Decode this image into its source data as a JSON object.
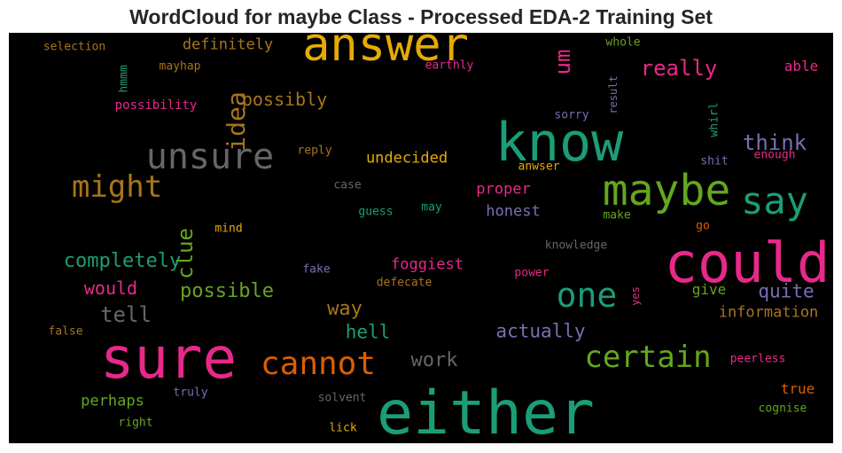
{
  "chart_data": {
    "type": "wordcloud",
    "title": "WordCloud for maybe Class - Processed EDA-2 Training Set",
    "words": [
      {
        "text": "answer",
        "size": 52,
        "color": "#e6ab02"
      },
      {
        "text": "know",
        "size": 60,
        "color": "#1b9e77"
      },
      {
        "text": "could",
        "size": 62,
        "color": "#e7298a"
      },
      {
        "text": "sure",
        "size": 64,
        "color": "#e7298a"
      },
      {
        "text": "either",
        "size": 68,
        "color": "#1b9e77"
      },
      {
        "text": "maybe",
        "size": 48,
        "color": "#66a61e"
      },
      {
        "text": "unsure",
        "size": 40,
        "color": "#666666"
      },
      {
        "text": "say",
        "size": 42,
        "color": "#1b9e77"
      },
      {
        "text": "cannot",
        "size": 36,
        "color": "#d95f02"
      },
      {
        "text": "one",
        "size": 38,
        "color": "#1b9e77"
      },
      {
        "text": "might",
        "size": 34,
        "color": "#a6761d"
      },
      {
        "text": "certain",
        "size": 34,
        "color": "#66a61e"
      },
      {
        "text": "idea",
        "size": 28,
        "color": "#a6761d",
        "vertical": true
      },
      {
        "text": "really",
        "size": 24,
        "color": "#e7298a"
      },
      {
        "text": "think",
        "size": 24,
        "color": "#7570b3"
      },
      {
        "text": "clue",
        "size": 24,
        "color": "#66a61e",
        "vertical": true
      },
      {
        "text": "um",
        "size": 24,
        "color": "#e7298a",
        "vertical": true
      },
      {
        "text": "tell",
        "size": 24,
        "color": "#666666"
      },
      {
        "text": "possible",
        "size": 22,
        "color": "#66a61e"
      },
      {
        "text": "completely",
        "size": 22,
        "color": "#1b9e77"
      },
      {
        "text": "way",
        "size": 22,
        "color": "#a6761d"
      },
      {
        "text": "work",
        "size": 22,
        "color": "#666666"
      },
      {
        "text": "actually",
        "size": 21,
        "color": "#7570b3"
      },
      {
        "text": "quite",
        "size": 21,
        "color": "#7570b3"
      },
      {
        "text": "hell",
        "size": 21,
        "color": "#1b9e77"
      },
      {
        "text": "would",
        "size": 20,
        "color": "#e7298a"
      },
      {
        "text": "possibly",
        "size": 20,
        "color": "#a6761d"
      },
      {
        "text": "definitely",
        "size": 17,
        "color": "#a6761d"
      },
      {
        "text": "undecided",
        "size": 17,
        "color": "#e6ab02"
      },
      {
        "text": "foggiest",
        "size": 17,
        "color": "#e7298a"
      },
      {
        "text": "honest",
        "size": 17,
        "color": "#7570b3"
      },
      {
        "text": "proper",
        "size": 17,
        "color": "#e7298a"
      },
      {
        "text": "information",
        "size": 17,
        "color": "#a6761d"
      },
      {
        "text": "perhaps",
        "size": 17,
        "color": "#66a61e"
      },
      {
        "text": "give",
        "size": 16,
        "color": "#66a61e"
      },
      {
        "text": "true",
        "size": 16,
        "color": "#d95f02"
      },
      {
        "text": "able",
        "size": 16,
        "color": "#e7298a"
      },
      {
        "text": "possibility",
        "size": 14,
        "color": "#e7298a"
      },
      {
        "text": "selection",
        "size": 13,
        "color": "#a6761d"
      },
      {
        "text": "mayhap",
        "size": 13,
        "color": "#a6761d"
      },
      {
        "text": "earthly",
        "size": 13,
        "color": "#e7298a"
      },
      {
        "text": "whole",
        "size": 13,
        "color": "#66a61e"
      },
      {
        "text": "hmmm",
        "size": 13,
        "color": "#1b9e77",
        "vertical": true
      },
      {
        "text": "result",
        "size": 12,
        "color": "#7570b3",
        "vertical": true
      },
      {
        "text": "sorry",
        "size": 13,
        "color": "#7570b3"
      },
      {
        "text": "whirl",
        "size": 13,
        "color": "#1b9e77",
        "vertical": true
      },
      {
        "text": "reply",
        "size": 13,
        "color": "#a6761d"
      },
      {
        "text": "enough",
        "size": 13,
        "color": "#e7298a"
      },
      {
        "text": "shit",
        "size": 13,
        "color": "#7570b3"
      },
      {
        "text": "anwser",
        "size": 13,
        "color": "#e6ab02"
      },
      {
        "text": "case",
        "size": 13,
        "color": "#666666"
      },
      {
        "text": "guess",
        "size": 13,
        "color": "#1b9e77"
      },
      {
        "text": "may",
        "size": 13,
        "color": "#1b9e77"
      },
      {
        "text": "make",
        "size": 13,
        "color": "#66a61e"
      },
      {
        "text": "go",
        "size": 13,
        "color": "#d95f02"
      },
      {
        "text": "mind",
        "size": 13,
        "color": "#e6ab02"
      },
      {
        "text": "knowledge",
        "size": 13,
        "color": "#666666"
      },
      {
        "text": "fake",
        "size": 13,
        "color": "#7570b3"
      },
      {
        "text": "defecate",
        "size": 13,
        "color": "#a6761d"
      },
      {
        "text": "power",
        "size": 13,
        "color": "#e7298a"
      },
      {
        "text": "yes",
        "size": 12,
        "color": "#e7298a",
        "vertical": true
      },
      {
        "text": "false",
        "size": 13,
        "color": "#a6761d"
      },
      {
        "text": "truly",
        "size": 13,
        "color": "#7570b3"
      },
      {
        "text": "solvent",
        "size": 13,
        "color": "#666666"
      },
      {
        "text": "peerless",
        "size": 13,
        "color": "#e7298a"
      },
      {
        "text": "cognise",
        "size": 13,
        "color": "#66a61e"
      },
      {
        "text": "right",
        "size": 13,
        "color": "#66a61e"
      },
      {
        "text": "lick",
        "size": 13,
        "color": "#e6ab02"
      }
    ]
  }
}
